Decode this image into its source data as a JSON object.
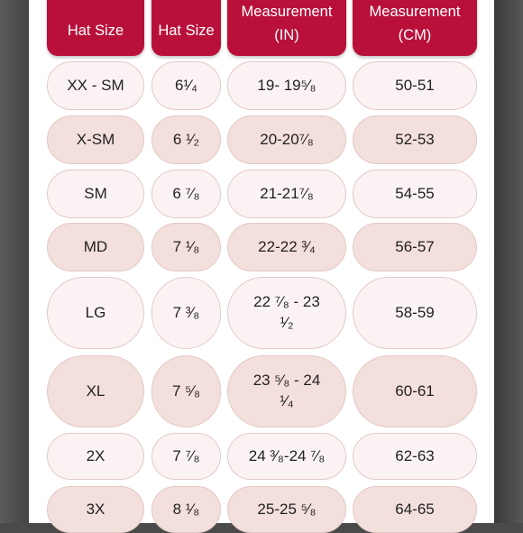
{
  "headers": {
    "col1": "Hat Size",
    "col2": "Hat Size",
    "col3": "Measurement\n(IN)",
    "col4": "Measurement\n(CM)"
  },
  "rows": [
    {
      "label": "XX - SM",
      "hat": "6¹⁄₄",
      "inches": "19- 19⁵⁄₈",
      "cm": "50-51"
    },
    {
      "label": "X-SM",
      "hat": "6 ¹⁄₂",
      "inches": "20-20⁷⁄₈",
      "cm": "52-53"
    },
    {
      "label": "SM",
      "hat": "6 ⁷⁄₈",
      "inches": "21-21⁷⁄₈",
      "cm": "54-55"
    },
    {
      "label": "MD",
      "hat": "7 ¹⁄₈",
      "inches": "22-22 ³⁄₄",
      "cm": "56-57"
    },
    {
      "label": "LG",
      "hat": "7 ³⁄₈",
      "inches": "22 ⁷⁄₈ - 23\n¹⁄₂",
      "cm": "58-59"
    },
    {
      "label": "XL",
      "hat": "7 ⁵⁄₈",
      "inches": "23 ⁵⁄₈ - 24\n¹⁄₄",
      "cm": "60-61"
    },
    {
      "label": "2X",
      "hat": "7 ⁷⁄₈",
      "inches": "24 ³⁄₈-24 ⁷⁄₈",
      "cm": "62-63"
    },
    {
      "label": "3X",
      "hat": "8 ¹⁄₈",
      "inches": "25-25 ⁵⁄₈",
      "cm": "64-65"
    }
  ],
  "colors": {
    "header_bg": "#b8103a",
    "cell_light": "#fbf3f3",
    "cell_shaded": "#f3dfdc"
  }
}
